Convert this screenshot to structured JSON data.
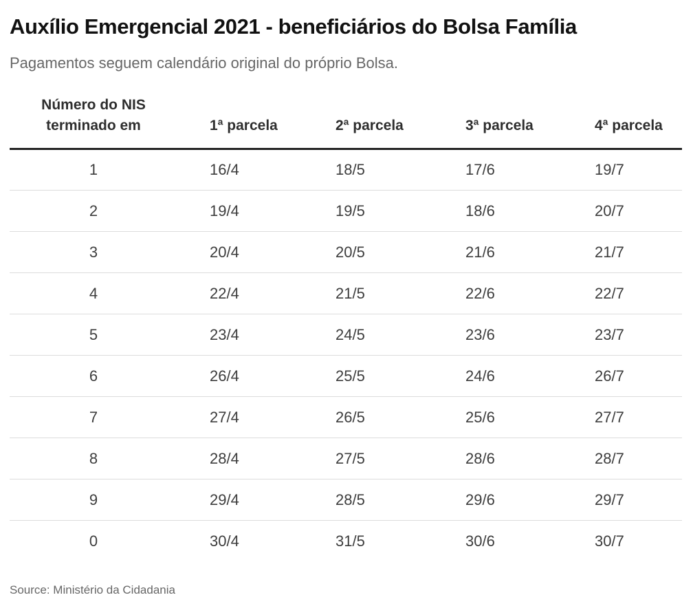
{
  "page": {
    "title": "Auxílio Emergencial 2021 - beneficiários do Bolsa Família",
    "subtitle": "Pagamentos seguem calendário original do próprio Bolsa.",
    "source": "Source: Ministério da Cidadania"
  },
  "table_header": {
    "nis_line1": "Número do NIS",
    "nis_line2": "terminado em",
    "parcela_1": "1ª parcela",
    "parcela_2": "2ª parcela",
    "parcela_3": "3ª parcela",
    "parcela_4": "4ª parcela"
  },
  "chart_data": {
    "type": "table",
    "title": "Auxílio Emergencial 2021 - beneficiários do Bolsa Família",
    "subtitle": "Pagamentos seguem calendário original do próprio Bolsa.",
    "source": "Source: Ministério da Cidadania",
    "columns": [
      "Número do NIS terminado em",
      "1ª parcela",
      "2ª parcela",
      "3ª parcela",
      "4ª parcela"
    ],
    "rows": [
      [
        "1",
        "16/4",
        "18/5",
        "17/6",
        "19/7"
      ],
      [
        "2",
        "19/4",
        "19/5",
        "18/6",
        "20/7"
      ],
      [
        "3",
        "20/4",
        "20/5",
        "21/6",
        "21/7"
      ],
      [
        "4",
        "22/4",
        "21/5",
        "22/6",
        "22/7"
      ],
      [
        "5",
        "23/4",
        "24/5",
        "23/6",
        "23/7"
      ],
      [
        "6",
        "26/4",
        "25/5",
        "24/6",
        "26/7"
      ],
      [
        "7",
        "27/4",
        "26/5",
        "25/6",
        "27/7"
      ],
      [
        "8",
        "28/4",
        "27/5",
        "28/6",
        "28/7"
      ],
      [
        "9",
        "29/4",
        "28/5",
        "29/6",
        "29/7"
      ],
      [
        "0",
        "30/4",
        "31/5",
        "30/6",
        "30/7"
      ]
    ]
  },
  "colors": {
    "background": "#ffffff",
    "title_color": "#111111",
    "subtitle_color": "#666666",
    "header_text": "#2e2e2e",
    "cell_text": "#3d3d3d",
    "header_rule": "#222222",
    "row_divider": "#dcdcdc",
    "source_color": "#666666"
  }
}
